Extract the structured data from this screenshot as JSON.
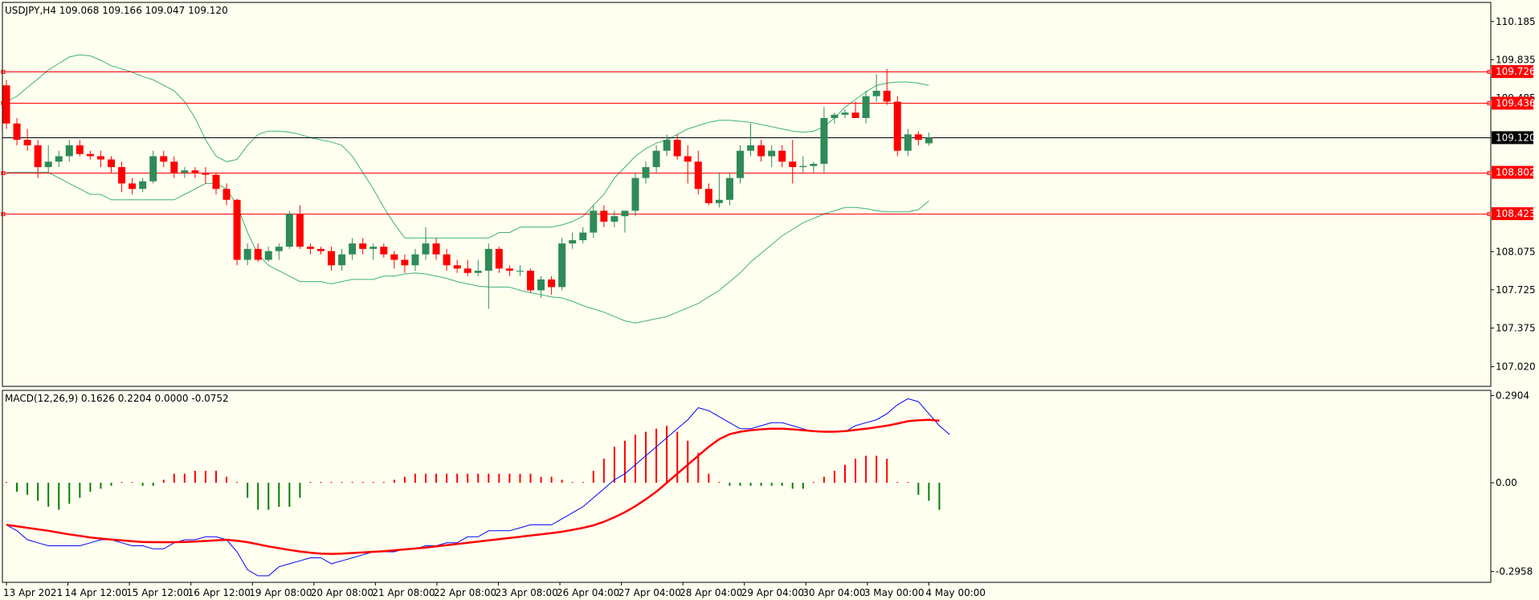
{
  "main_title": "USDJPY,H4  109.068 109.166 109.047 109.120",
  "indicator_title": "MACD(12,26,9) 0.1626 0.2204 0.0000 -0.0752",
  "colors": {
    "background": "#fffff0",
    "frame": "#000000",
    "bull_body": "#2e8b57",
    "bear_body": "#ff0000",
    "bollinger": "#3cb371",
    "hline": "#ff0000",
    "current_line": "#000000",
    "macd_line": "#0000ff",
    "signal_line": "#ff0000",
    "hist_pos": "#ff0000",
    "hist_neg": "#008000"
  },
  "chart_data": [
    {
      "type": "candlestick",
      "symbol": "USDJPY",
      "timeframe": "H4",
      "ylim": [
        106.84,
        110.36
      ],
      "price_ticks": [
        "110.185",
        "109.835",
        "109.485",
        "108.075",
        "107.725",
        "107.375",
        "107.020"
      ],
      "price_labels": [
        {
          "value": 109.726,
          "text": "109.726",
          "kind": "level"
        },
        {
          "value": 109.436,
          "text": "109.436",
          "kind": "level"
        },
        {
          "value": 109.12,
          "text": "109.120",
          "kind": "current"
        },
        {
          "value": 108.802,
          "text": "108.802",
          "kind": "level"
        },
        {
          "value": 108.423,
          "text": "108.423",
          "kind": "level"
        }
      ],
      "time_labels": [
        "13 Apr 2021",
        "14 Apr 12:00",
        "15 Apr 12:00",
        "16 Apr 12:00",
        "19 Apr 08:00",
        "20 Apr 08:00",
        "21 Apr 08:00",
        "22 Apr 08:00",
        "23 Apr 08:00",
        "26 Apr 04:00",
        "27 Apr 04:00",
        "28 Apr 04:00",
        "29 Apr 04:00",
        "30 Apr 04:00",
        "3 May 00:00",
        "4 May 00:00"
      ],
      "candles": [
        [
          109.6,
          109.65,
          109.2,
          109.25
        ],
        [
          109.25,
          109.3,
          109.05,
          109.1
        ],
        [
          109.1,
          109.2,
          109.0,
          109.05
        ],
        [
          109.05,
          109.1,
          108.75,
          108.85
        ],
        [
          108.85,
          109.05,
          108.8,
          108.9
        ],
        [
          108.9,
          109.0,
          108.85,
          108.95
        ],
        [
          108.95,
          109.1,
          108.9,
          109.05
        ],
        [
          109.05,
          109.1,
          108.95,
          108.97
        ],
        [
          108.97,
          109.0,
          108.92,
          108.95
        ],
        [
          108.95,
          109.0,
          108.85,
          108.92
        ],
        [
          108.92,
          108.95,
          108.8,
          108.85
        ],
        [
          108.85,
          108.9,
          108.62,
          108.7
        ],
        [
          108.7,
          108.75,
          108.6,
          108.65
        ],
        [
          108.65,
          108.75,
          108.62,
          108.72
        ],
        [
          108.72,
          109.0,
          108.7,
          108.95
        ],
        [
          108.95,
          109.0,
          108.85,
          108.9
        ],
        [
          108.9,
          108.95,
          108.75,
          108.8
        ],
        [
          108.8,
          108.85,
          108.75,
          108.82
        ],
        [
          108.82,
          108.85,
          108.75,
          108.8
        ],
        [
          108.8,
          108.85,
          108.7,
          108.78
        ],
        [
          108.78,
          108.8,
          108.6,
          108.65
        ],
        [
          108.65,
          108.7,
          108.5,
          108.55
        ],
        [
          108.55,
          108.56,
          107.95,
          108.0
        ],
        [
          108.0,
          108.15,
          107.95,
          108.1
        ],
        [
          108.1,
          108.15,
          107.98,
          108.0
        ],
        [
          108.0,
          108.12,
          107.98,
          108.08
        ],
        [
          108.08,
          108.15,
          108.0,
          108.12
        ],
        [
          108.12,
          108.45,
          108.1,
          108.42
        ],
        [
          108.42,
          108.5,
          108.1,
          108.12
        ],
        [
          108.12,
          108.15,
          108.05,
          108.1
        ],
        [
          108.1,
          108.12,
          108.05,
          108.08
        ],
        [
          108.08,
          108.12,
          107.9,
          107.95
        ],
        [
          107.95,
          108.1,
          107.9,
          108.05
        ],
        [
          108.05,
          108.2,
          108.0,
          108.15
        ],
        [
          108.15,
          108.2,
          108.05,
          108.1
        ],
        [
          108.1,
          108.15,
          108.0,
          108.12
        ],
        [
          108.12,
          108.15,
          108.02,
          108.05
        ],
        [
          108.05,
          108.08,
          107.92,
          108.0
        ],
        [
          108.0,
          108.05,
          107.88,
          107.95
        ],
        [
          107.95,
          108.1,
          107.9,
          108.05
        ],
        [
          108.05,
          108.3,
          108.0,
          108.15
        ],
        [
          108.15,
          108.2,
          108.0,
          108.05
        ],
        [
          108.05,
          108.1,
          107.9,
          107.95
        ],
        [
          107.95,
          108.0,
          107.88,
          107.92
        ],
        [
          107.92,
          108.0,
          107.85,
          107.88
        ],
        [
          107.88,
          108.0,
          107.85,
          107.9
        ],
        [
          107.9,
          108.15,
          107.55,
          108.1
        ],
        [
          108.1,
          108.12,
          107.88,
          107.92
        ],
        [
          107.92,
          107.95,
          107.85,
          107.9
        ],
        [
          107.9,
          107.95,
          107.85,
          107.9
        ],
        [
          107.9,
          107.92,
          107.7,
          107.72
        ],
        [
          107.72,
          107.85,
          107.65,
          107.82
        ],
        [
          107.82,
          107.85,
          107.68,
          107.75
        ],
        [
          107.75,
          108.2,
          107.72,
          108.15
        ],
        [
          108.15,
          108.25,
          108.1,
          108.18
        ],
        [
          108.18,
          108.3,
          108.15,
          108.25
        ],
        [
          108.25,
          108.5,
          108.2,
          108.45
        ],
        [
          108.45,
          108.5,
          108.3,
          108.35
        ],
        [
          108.35,
          108.45,
          108.3,
          108.4
        ],
        [
          108.4,
          108.45,
          108.25,
          108.45
        ],
        [
          108.45,
          108.8,
          108.4,
          108.75
        ],
        [
          108.75,
          108.9,
          108.7,
          108.85
        ],
        [
          108.85,
          109.05,
          108.8,
          109.0
        ],
        [
          109.0,
          109.15,
          108.95,
          109.1
        ],
        [
          109.1,
          109.15,
          108.92,
          108.95
        ],
        [
          108.95,
          109.05,
          108.7,
          108.9
        ],
        [
          108.9,
          109.0,
          108.6,
          108.65
        ],
        [
          108.65,
          108.7,
          108.5,
          108.52
        ],
        [
          108.52,
          108.8,
          108.48,
          108.55
        ],
        [
          108.55,
          108.8,
          108.5,
          108.75
        ],
        [
          108.75,
          109.05,
          108.7,
          109.0
        ],
        [
          109.0,
          109.25,
          108.95,
          109.05
        ],
        [
          109.05,
          109.1,
          108.9,
          108.95
        ],
        [
          108.95,
          109.05,
          108.85,
          109.0
        ],
        [
          109.0,
          109.05,
          108.85,
          108.9
        ],
        [
          108.9,
          109.1,
          108.7,
          108.85
        ],
        [
          108.85,
          108.95,
          108.8,
          108.86
        ],
        [
          108.86,
          108.9,
          108.8,
          108.88
        ],
        [
          108.88,
          109.4,
          108.8,
          109.3
        ],
        [
          109.3,
          109.35,
          109.25,
          109.33
        ],
        [
          109.33,
          109.38,
          109.3,
          109.35
        ],
        [
          109.35,
          109.45,
          109.3,
          109.3
        ],
        [
          109.3,
          109.55,
          109.25,
          109.5
        ],
        [
          109.5,
          109.7,
          109.45,
          109.55
        ],
        [
          109.55,
          109.75,
          109.42,
          109.45
        ],
        [
          109.45,
          109.5,
          108.95,
          109.0
        ],
        [
          109.0,
          109.2,
          108.95,
          109.15
        ],
        [
          109.15,
          109.18,
          109.05,
          109.1
        ],
        [
          109.068,
          109.166,
          109.047,
          109.12
        ]
      ],
      "bollinger_upper": [
        109.45,
        109.5,
        109.58,
        109.66,
        109.74,
        109.8,
        109.86,
        109.88,
        109.87,
        109.83,
        109.78,
        109.75,
        109.72,
        109.68,
        109.65,
        109.6,
        109.55,
        109.45,
        109.3,
        109.1,
        108.95,
        108.9,
        108.92,
        109.05,
        109.15,
        109.18,
        109.18,
        109.17,
        109.15,
        109.12,
        109.1,
        109.08,
        109.05,
        108.95,
        108.8,
        108.65,
        108.48,
        108.33,
        108.2,
        108.2,
        108.2,
        108.2,
        108.2,
        108.2,
        108.2,
        108.2,
        108.2,
        108.25,
        108.25,
        108.3,
        108.3,
        108.3,
        108.3,
        108.32,
        108.35,
        108.4,
        108.5,
        108.6,
        108.75,
        108.85,
        108.95,
        109.02,
        109.07,
        109.1,
        109.15,
        109.2,
        109.23,
        109.26,
        109.28,
        109.28,
        109.27,
        109.26,
        109.24,
        109.22,
        109.2,
        109.18,
        109.17,
        109.18,
        109.22,
        109.3,
        109.4,
        109.47,
        109.54,
        109.6,
        109.62,
        109.63,
        109.63,
        109.62,
        109.6
      ],
      "bollinger_lower": [
        108.8,
        108.8,
        108.8,
        108.8,
        108.8,
        108.75,
        108.7,
        108.65,
        108.6,
        108.6,
        108.55,
        108.55,
        108.55,
        108.55,
        108.55,
        108.55,
        108.55,
        108.6,
        108.65,
        108.7,
        108.7,
        108.65,
        108.5,
        108.25,
        108.05,
        107.95,
        107.9,
        107.85,
        107.8,
        107.8,
        107.8,
        107.78,
        107.8,
        107.82,
        107.82,
        107.82,
        107.85,
        107.85,
        107.87,
        107.88,
        107.87,
        107.85,
        107.83,
        107.8,
        107.78,
        107.76,
        107.75,
        107.75,
        107.75,
        107.72,
        107.7,
        107.68,
        107.66,
        107.65,
        107.62,
        107.58,
        107.55,
        107.52,
        107.48,
        107.44,
        107.42,
        107.44,
        107.46,
        107.48,
        107.52,
        107.56,
        107.6,
        107.66,
        107.72,
        107.8,
        107.88,
        107.98,
        108.06,
        108.14,
        108.22,
        108.28,
        108.34,
        108.38,
        108.42,
        108.45,
        108.48,
        108.48,
        108.47,
        108.45,
        108.44,
        108.44,
        108.44,
        108.46,
        108.54
      ]
    },
    {
      "type": "macd",
      "params": [
        12,
        26,
        9
      ],
      "ylim": [
        -0.3317,
        0.3078
      ],
      "ticks": [
        "0.2904",
        "0.00",
        "-0.2958"
      ],
      "histogram": [
        0.0,
        -0.03,
        -0.04,
        -0.06,
        -0.08,
        -0.09,
        -0.07,
        -0.05,
        -0.03,
        -0.02,
        -0.01,
        0.0,
        0.0,
        -0.01,
        -0.01,
        0.01,
        0.03,
        0.03,
        0.04,
        0.04,
        0.04,
        0.02,
        0.0,
        -0.05,
        -0.09,
        -0.09,
        -0.08,
        -0.08,
        -0.05,
        0.0,
        0.0,
        0.0,
        0.0,
        0.0,
        0.0,
        0.0,
        0.0,
        0.01,
        0.02,
        0.03,
        0.03,
        0.03,
        0.03,
        0.03,
        0.03,
        0.03,
        0.03,
        0.03,
        0.03,
        0.03,
        0.03,
        0.02,
        0.02,
        0.01,
        0.0,
        0.0,
        0.04,
        0.08,
        0.12,
        0.14,
        0.16,
        0.17,
        0.18,
        0.19,
        0.17,
        0.14,
        0.1,
        0.03,
        0.0,
        -0.01,
        -0.01,
        -0.01,
        -0.01,
        -0.01,
        -0.01,
        -0.02,
        -0.02,
        0.0,
        0.02,
        0.04,
        0.06,
        0.08,
        0.09,
        0.09,
        0.08,
        0.0,
        0.0,
        -0.04,
        -0.06,
        -0.09
      ],
      "macd": [
        -0.14,
        -0.16,
        -0.19,
        -0.2,
        -0.21,
        -0.21,
        -0.21,
        -0.21,
        -0.2,
        -0.19,
        -0.19,
        -0.2,
        -0.21,
        -0.21,
        -0.22,
        -0.22,
        -0.2,
        -0.19,
        -0.19,
        -0.18,
        -0.18,
        -0.19,
        -0.23,
        -0.29,
        -0.31,
        -0.31,
        -0.28,
        -0.27,
        -0.26,
        -0.25,
        -0.25,
        -0.27,
        -0.26,
        -0.25,
        -0.24,
        -0.23,
        -0.23,
        -0.23,
        -0.22,
        -0.22,
        -0.21,
        -0.21,
        -0.2,
        -0.2,
        -0.18,
        -0.18,
        -0.16,
        -0.16,
        -0.16,
        -0.15,
        -0.14,
        -0.14,
        -0.14,
        -0.12,
        -0.1,
        -0.08,
        -0.05,
        -0.02,
        0.01,
        0.03,
        0.06,
        0.09,
        0.12,
        0.15,
        0.18,
        0.21,
        0.25,
        0.24,
        0.22,
        0.2,
        0.18,
        0.18,
        0.19,
        0.2,
        0.2,
        0.19,
        0.18,
        0.17,
        0.17,
        0.17,
        0.17,
        0.19,
        0.2,
        0.21,
        0.23,
        0.26,
        0.28,
        0.27,
        0.23,
        0.19,
        0.16
      ],
      "signal": [
        -0.14,
        -0.145,
        -0.15,
        -0.155,
        -0.16,
        -0.166,
        -0.172,
        -0.177,
        -0.182,
        -0.186,
        -0.189,
        -0.192,
        -0.195,
        -0.197,
        -0.198,
        -0.198,
        -0.198,
        -0.197,
        -0.196,
        -0.194,
        -0.192,
        -0.19,
        -0.193,
        -0.198,
        -0.205,
        -0.212,
        -0.218,
        -0.224,
        -0.229,
        -0.233,
        -0.236,
        -0.237,
        -0.236,
        -0.234,
        -0.232,
        -0.23,
        -0.228,
        -0.225,
        -0.222,
        -0.219,
        -0.216,
        -0.212,
        -0.208,
        -0.204,
        -0.2,
        -0.196,
        -0.192,
        -0.188,
        -0.184,
        -0.18,
        -0.176,
        -0.172,
        -0.168,
        -0.163,
        -0.157,
        -0.15,
        -0.142,
        -0.13,
        -0.115,
        -0.098,
        -0.078,
        -0.055,
        -0.03,
        0.0,
        0.03,
        0.06,
        0.09,
        0.12,
        0.145,
        0.162,
        0.17,
        0.175,
        0.178,
        0.18,
        0.18,
        0.178,
        0.175,
        0.172,
        0.17,
        0.17,
        0.172,
        0.176,
        0.18,
        0.185,
        0.19,
        0.197,
        0.205,
        0.208,
        0.21,
        0.207
      ]
    }
  ]
}
